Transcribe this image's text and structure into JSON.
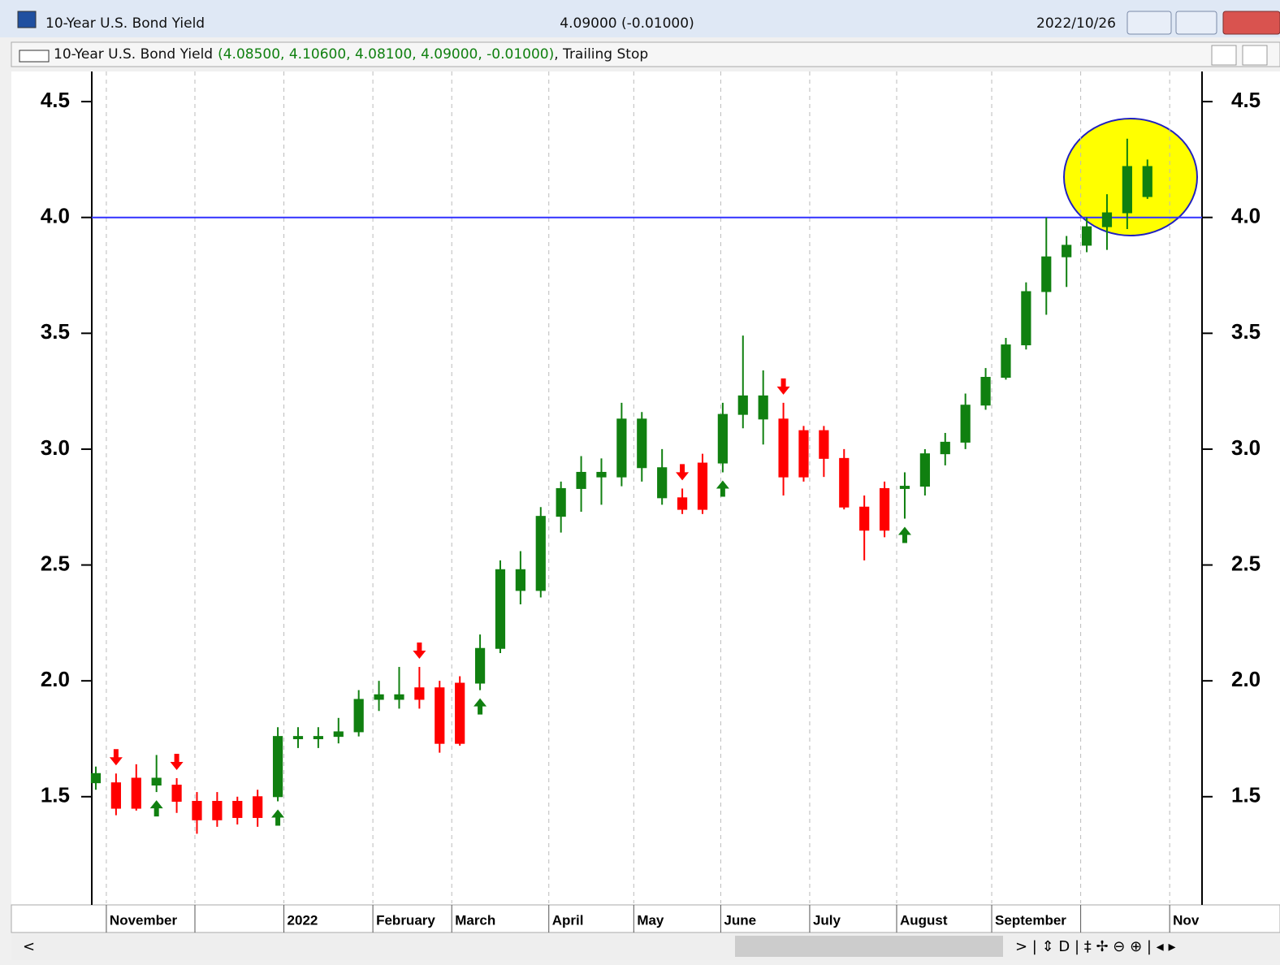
{
  "window": {
    "title": "10-Year U.S. Bond Yield",
    "quote": "4.09000 (-0.01000)",
    "date": "2022/10/26",
    "legend_name": "10-Year U.S. Bond Yield",
    "legend_values": "(4.08500, 4.10600, 4.08100, 4.09000, -0.01000)",
    "legend_study": ", Trailing Stop"
  },
  "chart_data": {
    "type": "candlestick",
    "open": [
      1.6,
      1.56,
      1.45,
      1.58,
      1.55,
      1.48,
      1.4,
      1.48,
      1.41,
      1.5,
      1.76,
      1.75,
      1.76,
      1.78,
      1.92,
      1.94,
      1.92,
      1.97,
      1.73,
      1.99,
      2.14,
      2.48,
      2.39,
      2.71,
      2.83,
      2.9,
      2.88,
      3.13,
      2.92,
      2.79,
      2.74,
      2.94,
      3.15,
      3.23,
      3.13,
      2.88,
      3.08,
      2.96,
      2.75,
      2.65,
      2.83,
      2.84,
      2.98,
      3.03,
      3.19,
      3.31,
      3.45,
      3.68,
      3.83,
      3.88,
      3.96,
      4.02,
      4.22
    ],
    "high": [
      1.63,
      1.6,
      1.64,
      1.68,
      1.58,
      1.52,
      1.52,
      1.5,
      1.53,
      1.8,
      1.8,
      1.8,
      1.84,
      1.96,
      2.0,
      2.06,
      2.06,
      2.0,
      2.02,
      2.2,
      2.52,
      2.56,
      2.75,
      2.86,
      2.97,
      2.96,
      3.2,
      3.16,
      3.0,
      2.83,
      2.98,
      3.2,
      3.49,
      3.34,
      3.2,
      3.1,
      3.1,
      3.0,
      2.8,
      2.86,
      2.9,
      3.0,
      3.07,
      3.24,
      3.35,
      3.48,
      3.72,
      4.0,
      3.92,
      4.0,
      4.1,
      4.34,
      4.25
    ],
    "low": [
      1.53,
      1.42,
      1.44,
      1.52,
      1.43,
      1.34,
      1.37,
      1.38,
      1.37,
      1.48,
      1.71,
      1.71,
      1.73,
      1.76,
      1.87,
      1.88,
      1.88,
      1.69,
      1.72,
      1.96,
      2.12,
      2.33,
      2.36,
      2.64,
      2.73,
      2.76,
      2.84,
      2.86,
      2.76,
      2.72,
      2.72,
      2.9,
      3.09,
      3.02,
      2.8,
      2.86,
      2.88,
      2.74,
      2.52,
      2.62,
      2.7,
      2.8,
      2.93,
      3.0,
      3.17,
      3.3,
      3.43,
      3.58,
      3.7,
      3.85,
      3.86,
      3.95,
      4.08
    ],
    "close": [
      1.56,
      1.45,
      1.58,
      1.55,
      1.48,
      1.4,
      1.48,
      1.41,
      1.5,
      1.76,
      1.75,
      1.76,
      1.78,
      1.92,
      1.94,
      1.92,
      1.97,
      1.73,
      1.99,
      2.14,
      2.48,
      2.39,
      2.71,
      2.83,
      2.9,
      2.88,
      3.13,
      2.92,
      2.79,
      2.74,
      2.94,
      3.15,
      3.23,
      3.13,
      2.88,
      3.08,
      2.96,
      2.75,
      2.65,
      2.83,
      2.84,
      2.98,
      3.03,
      3.19,
      3.31,
      3.45,
      3.68,
      3.83,
      3.88,
      3.96,
      4.02,
      4.22,
      4.09
    ],
    "signals": [
      {
        "x": 1,
        "signal": "sell"
      },
      {
        "x": 3,
        "signal": "buy"
      },
      {
        "x": 4,
        "signal": "sell"
      },
      {
        "x": 9,
        "signal": "buy"
      },
      {
        "x": 16,
        "signal": "sell"
      },
      {
        "x": 19,
        "signal": "buy"
      },
      {
        "x": 29,
        "signal": "sell"
      },
      {
        "x": 31,
        "signal": "buy"
      },
      {
        "x": 34,
        "signal": "sell"
      },
      {
        "x": 40,
        "signal": "buy"
      }
    ],
    "buy_color": "#108010",
    "sell_color": "#ff0000",
    "hline": 4.0,
    "hline_color": "#3030ff",
    "xlim": [
      -0.2,
      54.7
    ],
    "xticks": [
      {
        "value": 0.52,
        "label": "November"
      },
      {
        "value": 4.9,
        "label": null
      },
      {
        "value": 9.3,
        "label": "2022"
      },
      {
        "value": 13.7,
        "label": "February"
      },
      {
        "value": 17.6,
        "label": "March"
      },
      {
        "value": 22.4,
        "label": "April"
      },
      {
        "value": 26.6,
        "label": "May"
      },
      {
        "value": 30.9,
        "label": "June"
      },
      {
        "value": 35.3,
        "label": "July"
      },
      {
        "value": 39.6,
        "label": "August"
      },
      {
        "value": 44.3,
        "label": "September"
      },
      {
        "value": 48.7,
        "label": null
      },
      {
        "value": 53.1,
        "label": "Nov"
      }
    ],
    "ylim": [
      1.04,
      4.63
    ],
    "yticks": [
      1.5,
      {
        "value": 2,
        "label": "2.0"
      },
      2.5,
      {
        "value": 3,
        "label": "3.0"
      },
      3.5,
      {
        "value": 4,
        "label": "4.0"
      },
      4.5
    ],
    "grid": true
  }
}
